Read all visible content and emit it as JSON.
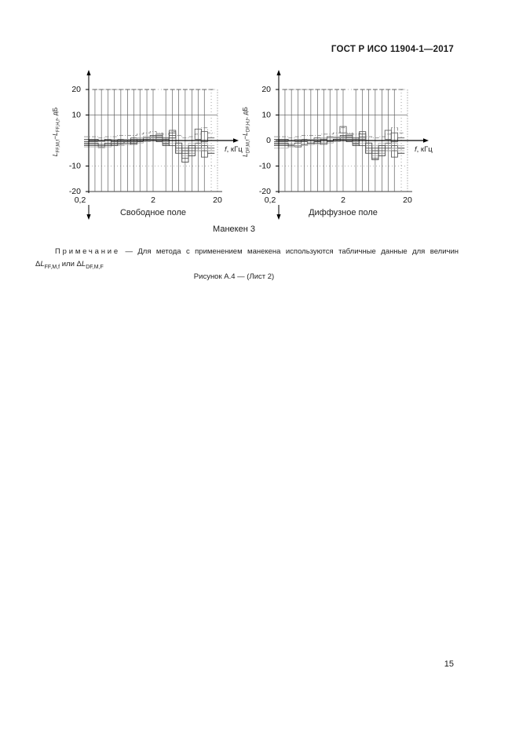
{
  "page": {
    "header": "ГОСТ Р ИСО 11904-1—2017",
    "page_number": "15"
  },
  "figure": {
    "manikin_label": "Манекен 3",
    "note_label": "Примечание",
    "note_dash": "—",
    "note_text": "Для метода с применением манекена используются табличные данные для величин",
    "formula": {
      "delta1": "Δ",
      "l1": "L",
      "sub1": "FF,M,f",
      "mid": " или ",
      "delta2": "Δ",
      "l2": "L",
      "sub2": "DF,M,F"
    },
    "caption": "Рисунок А.4 — (Лист 2)"
  },
  "chart_data": [
    {
      "type": "line",
      "title": "Свободное поле",
      "x_scale": "log",
      "xlim": [
        0.2,
        20
      ],
      "ylim": [
        -20,
        20
      ],
      "ylabel": {
        "term1": "L",
        "sub1": "FF,M,f",
        "minus": "−",
        "term2": "L",
        "sub2": "FF,H,f",
        "unit": ", дБ"
      },
      "xlabel": {
        "f": "f",
        "rest": ", кГц"
      },
      "x_ticks": [
        {
          "v": 0.2,
          "label": "0,2"
        },
        {
          "v": 2,
          "label": "2"
        },
        {
          "v": 20,
          "label": "20"
        }
      ],
      "y_ticks": [
        {
          "v": 20,
          "label": "20"
        },
        {
          "v": 10,
          "label": "10"
        },
        {
          "v": -10,
          "label": "-10"
        },
        {
          "v": -20,
          "label": "-20"
        }
      ],
      "gridlines": {
        "solid_y": [
          10
        ],
        "dashdot_y": [
          20,
          -10
        ],
        "dotted_x": [
          20
        ],
        "bottom_border": -20
      },
      "error_bar_freqs": [
        0.25,
        0.315,
        0.4,
        0.5,
        0.63,
        0.8,
        1,
        1.25,
        1.6,
        2,
        3.15,
        4,
        5,
        6.3,
        8,
        10,
        12.5
      ],
      "dashed_bar_freqs": [
        16
      ],
      "error_bar_range": [
        -20,
        20
      ],
      "freqs": [
        0.25,
        0.315,
        0.4,
        0.5,
        0.63,
        0.8,
        1,
        1.25,
        1.6,
        2,
        2.5,
        3.15,
        4,
        5,
        6.3,
        8,
        10,
        12.5,
        16
      ],
      "series": [
        {
          "name": "upper-envelope",
          "style": "dashdot",
          "values": [
            1.5,
            1,
            1.5,
            1.5,
            2,
            2,
            2,
            2.5,
            3,
            3.5,
            3,
            2.5,
            3.5,
            2,
            1,
            1.5,
            2.5,
            5,
            3
          ]
        },
        {
          "name": "subject-1",
          "style": "solid",
          "values": [
            -0.5,
            -0.5,
            0,
            -0.5,
            0,
            0,
            0.5,
            0.5,
            1,
            1.5,
            1,
            0.5,
            2,
            -1,
            -3,
            -2,
            -1,
            -2,
            -3
          ]
        },
        {
          "name": "subject-2",
          "style": "solid",
          "values": [
            -1,
            -1.5,
            -1,
            -1,
            -0.5,
            -1,
            -0.5,
            0,
            0.5,
            0.5,
            0,
            -1,
            1,
            -3,
            -5,
            -4,
            -3,
            -4,
            -4
          ]
        },
        {
          "name": "subject-3",
          "style": "solid",
          "values": [
            -2,
            -2,
            -1.5,
            -2,
            -1.5,
            -1.5,
            -1,
            -0.5,
            0,
            0,
            -0.5,
            -2,
            3,
            -5,
            -7,
            -5,
            -2,
            -3,
            -5
          ]
        },
        {
          "name": "subject-4",
          "style": "solid",
          "values": [
            -1.5,
            -2.5,
            -2,
            -1.5,
            -1,
            -0.5,
            -1,
            -0.5,
            0.5,
            1,
            1.5,
            0,
            -2,
            -4,
            -8.5,
            -6,
            -4,
            -6.5,
            -5
          ]
        },
        {
          "name": "subject-5",
          "style": "solid",
          "values": [
            0.5,
            0,
            0.5,
            0,
            0.5,
            0.5,
            1,
            1,
            1.5,
            2,
            2,
            1,
            0,
            -2,
            -4,
            -3,
            -2,
            0,
            1
          ]
        },
        {
          "name": "subject-6",
          "style": "gray",
          "values": [
            0,
            -0.5,
            0,
            0.5,
            0,
            0.5,
            0.5,
            1,
            1.5,
            1,
            0.5,
            0,
            1,
            -2,
            -2,
            -1,
            -2,
            -1,
            -2
          ]
        },
        {
          "name": "subject-7",
          "style": "gray",
          "values": [
            -2.5,
            -3,
            -2.5,
            -2,
            -2,
            -1.5,
            -1.5,
            -1,
            -0.5,
            0,
            0.5,
            -0.5,
            -1,
            -4,
            -6,
            -5,
            -4,
            -3,
            -4
          ]
        }
      ],
      "boxes": [
        {
          "f": 0.5,
          "y1": -2,
          "y2": 0
        },
        {
          "f": 1,
          "y1": -1.5,
          "y2": 0.5
        },
        {
          "f": 2.5,
          "y1": 0.5,
          "y2": 2.5
        },
        {
          "f": 3.15,
          "y1": -1.5,
          "y2": 1
        },
        {
          "f": 4,
          "y1": 1,
          "y2": 4
        },
        {
          "f": 5,
          "y1": -5,
          "y2": -1
        },
        {
          "f": 6.3,
          "y1": -8.5,
          "y2": -4
        },
        {
          "f": 8,
          "y1": -6,
          "y2": -2
        },
        {
          "f": 10,
          "y1": 0.5,
          "y2": 4.5
        },
        {
          "f": 12.5,
          "y1": -0.5,
          "y2": 3.5
        }
      ]
    },
    {
      "type": "line",
      "title": "Диффузное поле",
      "x_scale": "log",
      "xlim": [
        0.2,
        20
      ],
      "ylim": [
        -20,
        20
      ],
      "ylabel": {
        "term1": "L",
        "sub1": "DF,M,f",
        "minus": "−",
        "term2": "L",
        "sub2": "DF,H,f",
        "unit": ", дБ"
      },
      "xlabel": {
        "f": "f",
        "rest": ", кГц"
      },
      "x_ticks": [
        {
          "v": 0.2,
          "label": "0,2"
        },
        {
          "v": 2,
          "label": "2"
        },
        {
          "v": 20,
          "label": "20"
        }
      ],
      "y_ticks": [
        {
          "v": 20,
          "label": "20"
        },
        {
          "v": 10,
          "label": "10"
        },
        {
          "v": 0,
          "label": "0"
        },
        {
          "v": -10,
          "label": "-10"
        },
        {
          "v": -20,
          "label": "-20"
        }
      ],
      "gridlines": {
        "solid_y": [
          10
        ],
        "dashdot_y": [
          20,
          -10
        ],
        "dotted_x": [
          20
        ],
        "bottom_border": -20
      },
      "error_bar_freqs": [
        0.25,
        0.315,
        0.4,
        0.5,
        0.63,
        0.8,
        1,
        1.25,
        1.6,
        2,
        3.15,
        4,
        5,
        6.3,
        8,
        10,
        12.5
      ],
      "dashed_bar_freqs": [
        16
      ],
      "error_bar_range": [
        -20,
        20
      ],
      "freqs": [
        0.25,
        0.315,
        0.4,
        0.5,
        0.63,
        0.8,
        1,
        1.25,
        1.6,
        2,
        2.5,
        3.15,
        4,
        5,
        6.3,
        8,
        10,
        12.5,
        16
      ],
      "series": [
        {
          "name": "upper-envelope",
          "style": "dashdot",
          "values": [
            1.5,
            1,
            1.5,
            2,
            2,
            2,
            2.5,
            2.5,
            3,
            5,
            3,
            2.5,
            3,
            1.5,
            1,
            1.5,
            2.5,
            5,
            3
          ]
        },
        {
          "name": "subject-1",
          "style": "solid",
          "values": [
            -0.5,
            0,
            -0.5,
            0,
            0,
            0.5,
            0.5,
            1,
            1,
            1.5,
            1,
            0.5,
            1.5,
            -1,
            -3,
            -2,
            -1,
            -2,
            -3
          ]
        },
        {
          "name": "subject-2",
          "style": "solid",
          "values": [
            -1,
            -1.5,
            -1,
            -0.5,
            -1,
            -0.5,
            0,
            0,
            0.5,
            1,
            0,
            -1,
            1,
            -3,
            -5,
            -4,
            -3,
            -4,
            -3
          ]
        },
        {
          "name": "subject-3",
          "style": "solid",
          "values": [
            -2,
            -2.5,
            -2,
            -1.5,
            -1.5,
            -1,
            -1,
            -0.5,
            0,
            0.5,
            -0.5,
            -2,
            2.5,
            -5,
            -7,
            -5,
            -2,
            -3,
            -5
          ]
        },
        {
          "name": "subject-4",
          "style": "solid",
          "values": [
            -1.5,
            -2,
            -2.5,
            -1.5,
            -1,
            -0.5,
            -1,
            0,
            0.5,
            1,
            1.5,
            0,
            -2,
            -4,
            -7.5,
            -6,
            -4,
            -6.5,
            -5
          ]
        },
        {
          "name": "subject-5",
          "style": "solid",
          "values": [
            0.5,
            0,
            0.5,
            0.5,
            0.5,
            1,
            1,
            1.5,
            1.5,
            2,
            2,
            1,
            0,
            -2,
            -4,
            -3,
            -2,
            0,
            1
          ]
        },
        {
          "name": "subject-6",
          "style": "gray",
          "values": [
            0,
            -0.5,
            0.5,
            0,
            0.5,
            0.5,
            1,
            1,
            1.5,
            1,
            0.5,
            0,
            1,
            -2,
            -2,
            -1,
            -2,
            -1,
            -2
          ]
        },
        {
          "name": "subject-7",
          "style": "gray",
          "values": [
            -3,
            -2.5,
            -2,
            -2,
            -1.5,
            -1.5,
            -1,
            -1,
            -0.5,
            0,
            0.5,
            -0.5,
            -1,
            -4,
            -6,
            -5,
            -4,
            -3,
            -4
          ]
        }
      ],
      "boxes": [
        {
          "f": 1,
          "y1": -1.5,
          "y2": 0.5
        },
        {
          "f": 2,
          "y1": 3,
          "y2": 5.5
        },
        {
          "f": 2.5,
          "y1": 0.5,
          "y2": 2.5
        },
        {
          "f": 3.15,
          "y1": -1.5,
          "y2": 1
        },
        {
          "f": 4,
          "y1": 0.5,
          "y2": 3.5
        },
        {
          "f": 5,
          "y1": -5,
          "y2": -1
        },
        {
          "f": 6.3,
          "y1": -7.5,
          "y2": -4
        },
        {
          "f": 8,
          "y1": -6,
          "y2": -2
        },
        {
          "f": 10,
          "y1": 0.5,
          "y2": 4
        },
        {
          "f": 12.5,
          "y1": -0.5,
          "y2": 3
        }
      ]
    }
  ]
}
